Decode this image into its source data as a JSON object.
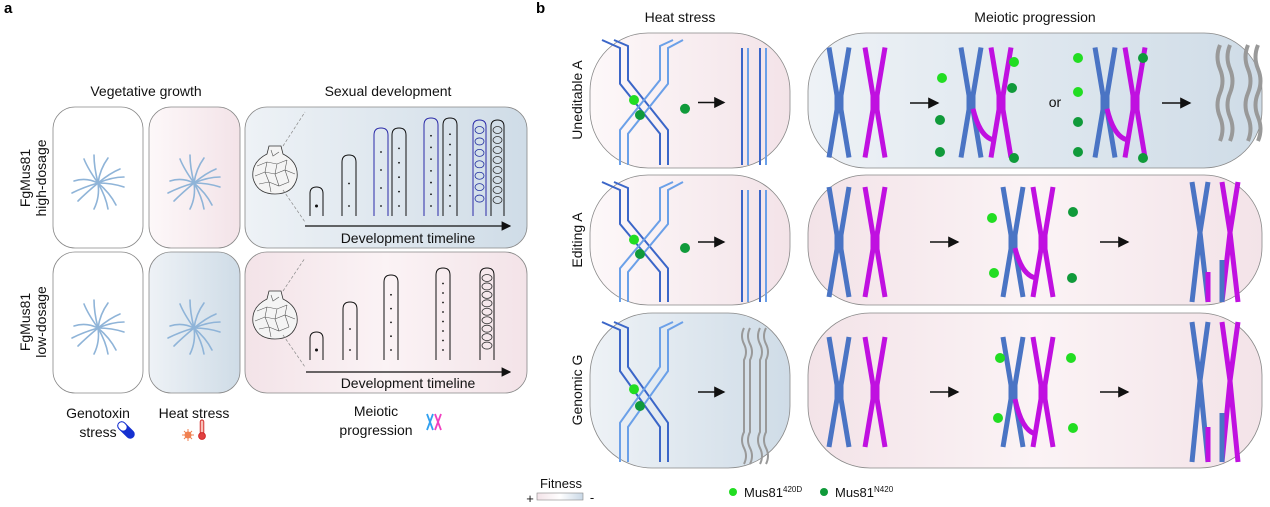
{
  "panel_a": {
    "letter": "a",
    "col_vegetative": "Vegetative growth",
    "col_sexual": "Sexual development",
    "row1_label_line1": "FgMus81",
    "row1_label_line2": "high-dosage",
    "row2_label_line1": "FgMus81",
    "row2_label_line2": "low-dosage",
    "timeline_label": "Development timeline",
    "bottom_genotoxin_line1": "Genotoxin",
    "bottom_genotoxin_line2": "stress",
    "bottom_heat": "Heat stress",
    "bottom_meiotic_line1": "Meiotic",
    "bottom_meiotic_line2": "progression"
  },
  "panel_b": {
    "letter": "b",
    "col_heat": "Heat stress",
    "col_meiotic": "Meiotic progression",
    "rows": [
      {
        "label": "Uneditable A"
      },
      {
        "label": "Editing A"
      },
      {
        "label": "Genomic G"
      }
    ],
    "or_label": "or"
  },
  "legend": {
    "fitness_title": "Fitness",
    "fitness_plus": "+",
    "fitness_minus": "-",
    "mus_light_base": "Mus81",
    "mus_light_sup": "420D",
    "mus_dark_base": "Mus81",
    "mus_dark_sup": "N420"
  },
  "colors": {
    "fitness_high": "#f3e3e8",
    "fitness_low": "#d0dde8",
    "chromosome_blue": "#4a74c4",
    "chromosome_magenta": "#c010e0",
    "mus81_420D": "#22dd22",
    "mus81_N420": "#109a3a",
    "colony": "#8fb4d8"
  }
}
